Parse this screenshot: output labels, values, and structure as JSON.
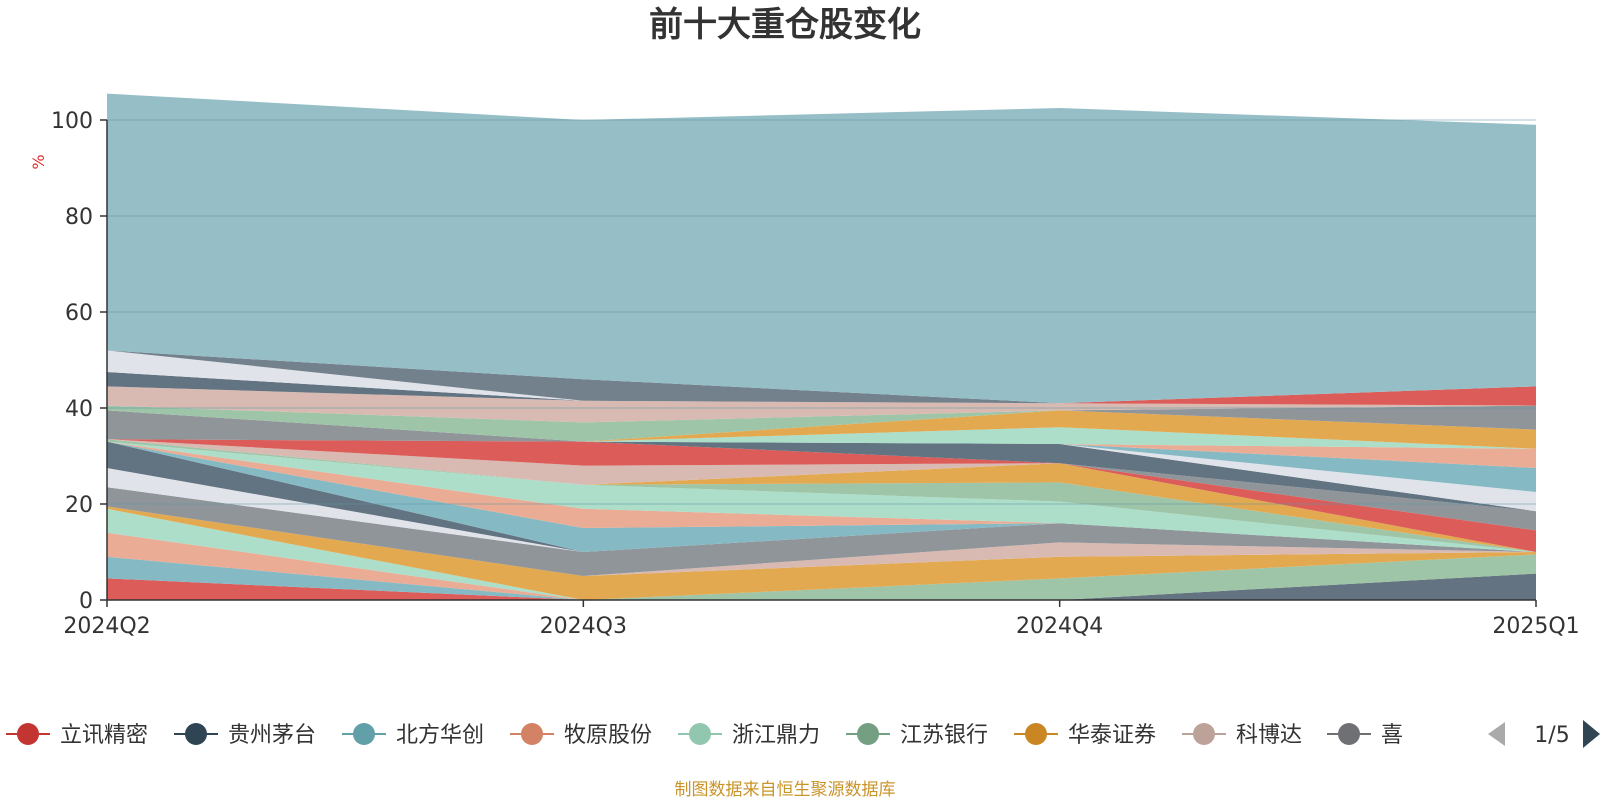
{
  "chart_data": {
    "type": "area",
    "stacked": "percent-100",
    "title": "前十大重仓股变化",
    "ylabel": "%",
    "ylim": [
      0,
      100
    ],
    "y_ticks": [
      "0",
      "20",
      "40",
      "60",
      "80",
      "100"
    ],
    "categories": [
      "2024Q2",
      "2024Q3",
      "2024Q4",
      "2025Q1"
    ],
    "source_note": "制图数据来自恒生聚源数据库",
    "legend_page": "1/5",
    "legend_position": "bottom",
    "series": [
      {
        "name": "立讯精密",
        "color": "#d9534f",
        "values": [
          4.5,
          0,
          0,
          0
        ]
      },
      {
        "name": "",
        "color": "#7eb6c1",
        "values": [
          4.5,
          0,
          0,
          0
        ]
      },
      {
        "name": "",
        "color": "#e9a88f",
        "values": [
          5.0,
          0,
          0,
          0
        ]
      },
      {
        "name": "",
        "color": "#a8dcc6",
        "values": [
          5.0,
          0,
          0,
          0
        ]
      },
      {
        "name": "",
        "color": "#5c6c7a",
        "values": [
          0,
          0,
          0,
          5.5
        ]
      },
      {
        "name": "",
        "color": "#9ac2a3",
        "values": [
          0,
          0,
          4.5,
          4.0
        ]
      },
      {
        "name": "",
        "color": "#e2a447",
        "values": [
          0.5,
          5.0,
          4.5,
          0.5
        ]
      },
      {
        "name": "",
        "color": "#d6b6ae",
        "values": [
          0,
          0,
          3.0,
          0
        ]
      },
      {
        "name": "",
        "color": "#8a8f95",
        "values": [
          4.0,
          5.0,
          4.0,
          0
        ]
      },
      {
        "name": "",
        "color": "#dfe2e9",
        "values": [
          4.0,
          0,
          0,
          0
        ]
      },
      {
        "name": "贵州茅台",
        "color": "#5a6b7a",
        "values": [
          5.5,
          0,
          0,
          0
        ]
      },
      {
        "name": "北方华创",
        "color": "#7eb6c1",
        "values": [
          0,
          5.0,
          0,
          0
        ]
      },
      {
        "name": "牧原股份",
        "color": "#e9a88f",
        "values": [
          0,
          4.0,
          0,
          0
        ]
      },
      {
        "name": "浙江鼎力",
        "color": "#a8dcc6",
        "values": [
          0,
          5.0,
          4.5,
          0
        ]
      },
      {
        "name": "江苏银行",
        "color": "#9ac2a3",
        "values": [
          0.5,
          0,
          4.0,
          0
        ]
      },
      {
        "name": "华泰证券",
        "color": "#e2a447",
        "values": [
          0,
          0,
          4.0,
          0
        ]
      },
      {
        "name": "科博达",
        "color": "#d6b6ae",
        "values": [
          0,
          4.0,
          0,
          0
        ]
      },
      {
        "name": "",
        "color": "#d9534f",
        "values": [
          0,
          5.0,
          0,
          4.5
        ]
      },
      {
        "name": "",
        "color": "#8a8f95",
        "values": [
          6.0,
          0,
          0,
          4.0
        ]
      },
      {
        "name": "",
        "color": "#5a6b7a",
        "values": [
          0,
          0,
          4.0,
          0
        ]
      },
      {
        "name": "",
        "color": "#dfe2e9",
        "values": [
          0,
          0,
          0,
          4.0
        ]
      },
      {
        "name": "",
        "color": "#7eb6c1",
        "values": [
          0,
          0,
          0,
          5.0
        ]
      },
      {
        "name": "",
        "color": "#e9a88f",
        "values": [
          0,
          0,
          0,
          4.0
        ]
      },
      {
        "name": "",
        "color": "#a8dcc6",
        "values": [
          0,
          0,
          3.5,
          0
        ]
      },
      {
        "name": "",
        "color": "#e2a447",
        "values": [
          0,
          0,
          3.5,
          4.0
        ]
      },
      {
        "name": "",
        "color": "#9ac2a3",
        "values": [
          1.0,
          4.0,
          0,
          0
        ]
      },
      {
        "name": "",
        "color": "#8a8f95",
        "values": [
          0,
          0,
          0,
          5.0
        ]
      },
      {
        "name": "",
        "color": "#d6b6ae",
        "values": [
          4.0,
          4.5,
          1.5,
          0
        ]
      },
      {
        "name": "",
        "color": "#5a6b7a",
        "values": [
          3.0,
          0,
          0,
          0
        ]
      },
      {
        "name": "",
        "color": "#d9534f",
        "values": [
          0,
          0,
          0,
          4.0
        ]
      },
      {
        "name": "",
        "color": "#dfe2e9",
        "values": [
          4.5,
          0,
          0,
          0
        ]
      },
      {
        "name": "",
        "color": "#6c7a86",
        "values": [
          0,
          4.5,
          0,
          0
        ]
      },
      {
        "name": "",
        "color": "#8fbbc3",
        "values": [
          53.5,
          54.0,
          61.5,
          54.5
        ]
      }
    ]
  },
  "legend": {
    "items": [
      {
        "name": "立讯精密",
        "color": "#c23531"
      },
      {
        "name": "贵州茅台",
        "color": "#2f4554"
      },
      {
        "name": "北方华创",
        "color": "#61a0a8"
      },
      {
        "name": "牧原股份",
        "color": "#d48265"
      },
      {
        "name": "浙江鼎力",
        "color": "#91c7ae"
      },
      {
        "name": "江苏银行",
        "color": "#749f83"
      },
      {
        "name": "华泰证券",
        "color": "#ca8622"
      },
      {
        "name": "科博达",
        "color": "#bda29a"
      },
      {
        "name": "喜",
        "color": "#6e7074"
      }
    ]
  },
  "icons": {
    "prev": "triangle-left-icon",
    "next": "triangle-right-icon"
  }
}
